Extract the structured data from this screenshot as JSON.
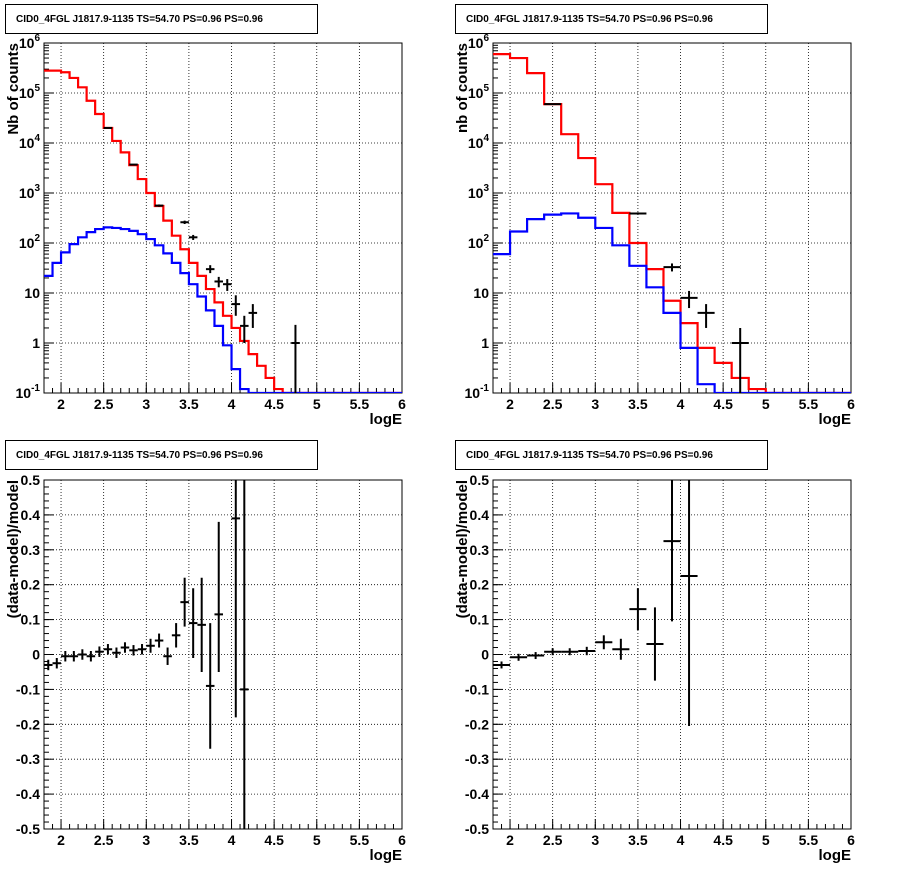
{
  "panels": [
    {
      "title": "CID0_4FGL J1817.9-1135 TS=54.70 PS=0.96 PS=0.96",
      "chart_data": {
        "type": "line",
        "xlabel": "logE",
        "ylabel": "Nb of counts",
        "xlim": [
          1.8,
          6.0
        ],
        "ylim": [
          0.1,
          1000000
        ],
        "yscale": "log",
        "grid": true,
        "xticks": [
          "2",
          "2.5",
          "3",
          "3.5",
          "4",
          "4.5",
          "5",
          "5.5",
          "6"
        ],
        "yticks": [
          "10^-1",
          "1",
          "10",
          "10^2",
          "10^3",
          "10^4",
          "10^5",
          "10^6"
        ],
        "bin_edges": [
          1.8,
          1.9,
          2.0,
          2.1,
          2.2,
          2.3,
          2.4,
          2.5,
          2.6,
          2.7,
          2.8,
          2.9,
          3.0,
          3.1,
          3.2,
          3.3,
          3.4,
          3.5,
          3.6,
          3.7,
          3.8,
          3.9,
          4.0,
          4.1,
          4.2,
          4.3,
          4.4,
          4.5,
          4.6,
          4.7,
          4.8,
          4.9,
          5.0,
          5.1,
          5.2,
          5.3,
          5.4,
          5.5,
          5.6,
          5.7,
          5.8,
          5.9,
          6.0
        ],
        "series": [
          {
            "color": "#ff0000",
            "values": [
              280000,
              280000,
              260000,
              200000,
              130000,
              70000,
              38000,
              20000,
              11000,
              6500,
              3600,
              1900,
              1000,
              550,
              280,
              140,
              75,
              40,
              22,
              12,
              6.5,
              3.5,
              2.0,
              1.1,
              0.6,
              0.35,
              0.2,
              0.12,
              0.1,
              0.1,
              0.1,
              0.1,
              0.1,
              0.1,
              0.1,
              0.1,
              0.1,
              0.1,
              0.1,
              0.1,
              0.1,
              0.1
            ]
          },
          {
            "color": "#0000ff",
            "values": [
              22,
              40,
              65,
              95,
              130,
              165,
              190,
              205,
              200,
              190,
              175,
              150,
              120,
              90,
              62,
              40,
              25,
              15,
              8.5,
              4.5,
              2.2,
              0.9,
              0.3,
              0.12,
              0.1,
              0.1,
              0.1,
              0.1,
              0.1,
              0.1,
              0.1,
              0.1,
              0.1,
              0.1,
              0.1,
              0.1,
              0.1,
              0.1,
              0.1,
              0.1,
              0.1,
              0.1
            ]
          }
        ],
        "points": [
          {
            "x": 2.55,
            "xerr": 0.05,
            "y": 20000,
            "ylo": 19800,
            "yhi": 20200
          },
          {
            "x": 2.85,
            "xerr": 0.05,
            "y": 3700,
            "ylo": 3600,
            "yhi": 3800
          },
          {
            "x": 3.15,
            "xerr": 0.05,
            "y": 560,
            "ylo": 530,
            "yhi": 590
          },
          {
            "x": 3.45,
            "xerr": 0.05,
            "y": 260,
            "ylo": 240,
            "yhi": 280
          },
          {
            "x": 3.55,
            "xerr": 0.05,
            "y": 130,
            "ylo": 115,
            "yhi": 145
          },
          {
            "x": 3.75,
            "xerr": 0.05,
            "y": 30,
            "ylo": 25,
            "yhi": 36
          },
          {
            "x": 3.85,
            "xerr": 0.05,
            "y": 17,
            "ylo": 13,
            "yhi": 21
          },
          {
            "x": 3.95,
            "xerr": 0.05,
            "y": 15,
            "ylo": 11,
            "yhi": 19
          },
          {
            "x": 4.05,
            "xerr": 0.05,
            "y": 6,
            "ylo": 3.5,
            "yhi": 9
          },
          {
            "x": 4.15,
            "xerr": 0.05,
            "y": 2.2,
            "ylo": 1.0,
            "yhi": 3.5
          },
          {
            "x": 4.25,
            "xerr": 0.05,
            "y": 4,
            "ylo": 2,
            "yhi": 6
          },
          {
            "x": 4.75,
            "xerr": 0.05,
            "y": 1,
            "ylo": 0.1,
            "yhi": 2.3
          }
        ]
      }
    },
    {
      "title": "CID0_4FGL J1817.9-1135 TS=54.70 PS=0.96 PS=0.96",
      "chart_data": {
        "type": "line",
        "xlabel": "logE",
        "ylabel": "nb of counts",
        "xlim": [
          1.8,
          6.0
        ],
        "ylim": [
          0.1,
          1000000
        ],
        "yscale": "log",
        "grid": true,
        "xticks": [
          "2",
          "2.5",
          "3",
          "3.5",
          "4",
          "4.5",
          "5",
          "5.5",
          "6"
        ],
        "yticks": [
          "10^-1",
          "1",
          "10",
          "10^2",
          "10^3",
          "10^4",
          "10^5",
          "10^6"
        ],
        "bin_edges": [
          1.8,
          2.0,
          2.2,
          2.4,
          2.6,
          2.8,
          3.0,
          3.2,
          3.4,
          3.6,
          3.8,
          4.0,
          4.2,
          4.4,
          4.6,
          4.8,
          5.0,
          5.2,
          5.4,
          5.6,
          5.8,
          6.0
        ],
        "series": [
          {
            "color": "#ff0000",
            "values": [
              600000,
              500000,
              250000,
              60000,
              15000,
              5000,
              1500,
              400,
              100,
              30,
              7,
              2.5,
              0.8,
              0.4,
              0.2,
              0.12,
              0.1,
              0.1,
              0.1,
              0.1,
              0.1
            ]
          },
          {
            "color": "#0000ff",
            "values": [
              60,
              170,
              300,
              370,
              390,
              320,
              200,
              90,
              35,
              13,
              4,
              0.8,
              0.15,
              0.1,
              0.1,
              0.1,
              0.1,
              0.1,
              0.1,
              0.1,
              0.1
            ]
          }
        ],
        "points": [
          {
            "x": 2.5,
            "xerr": 0.1,
            "y": 60000,
            "ylo": 59000,
            "yhi": 61000
          },
          {
            "x": 3.5,
            "xerr": 0.1,
            "y": 390,
            "ylo": 370,
            "yhi": 410
          },
          {
            "x": 3.9,
            "xerr": 0.1,
            "y": 33,
            "ylo": 27,
            "yhi": 39
          },
          {
            "x": 4.1,
            "xerr": 0.1,
            "y": 8,
            "ylo": 5,
            "yhi": 11
          },
          {
            "x": 4.3,
            "xerr": 0.1,
            "y": 4,
            "ylo": 2,
            "yhi": 6
          },
          {
            "x": 4.7,
            "xerr": 0.1,
            "y": 1,
            "ylo": 0.1,
            "yhi": 2.0
          }
        ]
      }
    },
    {
      "title": "CID0_4FGL J1817.9-1135 TS=54.70 PS=0.96 PS=0.96",
      "chart_data": {
        "type": "scatter",
        "xlabel": "logE",
        "ylabel": "(data-model)/model",
        "xlim": [
          1.8,
          6.0
        ],
        "ylim": [
          -0.5,
          0.5
        ],
        "grid": true,
        "xticks": [
          "2",
          "2.5",
          "3",
          "3.5",
          "4",
          "4.5",
          "5",
          "5.5",
          "6"
        ],
        "yticks": [
          "-0.5",
          "-0.4",
          "-0.3",
          "-0.2",
          "-0.1",
          "0",
          "0.1",
          "0.2",
          "0.3",
          "0.4",
          "0.5"
        ],
        "points": [
          {
            "x": 1.85,
            "xerr": 0.05,
            "y": -0.03,
            "ylo": -0.045,
            "yhi": -0.015
          },
          {
            "x": 1.95,
            "xerr": 0.05,
            "y": -0.025,
            "ylo": -0.04,
            "yhi": -0.01
          },
          {
            "x": 2.05,
            "xerr": 0.05,
            "y": -0.005,
            "ylo": -0.02,
            "yhi": 0.01
          },
          {
            "x": 2.15,
            "xerr": 0.05,
            "y": -0.005,
            "ylo": -0.02,
            "yhi": 0.01
          },
          {
            "x": 2.25,
            "xerr": 0.05,
            "y": 0.0,
            "ylo": -0.015,
            "yhi": 0.015
          },
          {
            "x": 2.35,
            "xerr": 0.05,
            "y": -0.005,
            "ylo": -0.02,
            "yhi": 0.01
          },
          {
            "x": 2.45,
            "xerr": 0.05,
            "y": 0.008,
            "ylo": -0.007,
            "yhi": 0.023
          },
          {
            "x": 2.55,
            "xerr": 0.05,
            "y": 0.015,
            "ylo": 0.0,
            "yhi": 0.03
          },
          {
            "x": 2.65,
            "xerr": 0.05,
            "y": 0.005,
            "ylo": -0.01,
            "yhi": 0.02
          },
          {
            "x": 2.75,
            "xerr": 0.05,
            "y": 0.02,
            "ylo": 0.005,
            "yhi": 0.035
          },
          {
            "x": 2.85,
            "xerr": 0.05,
            "y": 0.012,
            "ylo": -0.003,
            "yhi": 0.027
          },
          {
            "x": 2.95,
            "xerr": 0.05,
            "y": 0.015,
            "ylo": 0.0,
            "yhi": 0.03
          },
          {
            "x": 3.05,
            "xerr": 0.05,
            "y": 0.025,
            "ylo": 0.005,
            "yhi": 0.045
          },
          {
            "x": 3.15,
            "xerr": 0.05,
            "y": 0.04,
            "ylo": 0.02,
            "yhi": 0.06
          },
          {
            "x": 3.25,
            "xerr": 0.05,
            "y": -0.005,
            "ylo": -0.03,
            "yhi": 0.02
          },
          {
            "x": 3.35,
            "xerr": 0.05,
            "y": 0.055,
            "ylo": 0.02,
            "yhi": 0.09
          },
          {
            "x": 3.45,
            "xerr": 0.05,
            "y": 0.15,
            "ylo": 0.08,
            "yhi": 0.22
          },
          {
            "x": 3.55,
            "xerr": 0.05,
            "y": 0.09,
            "ylo": -0.01,
            "yhi": 0.19
          },
          {
            "x": 3.65,
            "xerr": 0.05,
            "y": 0.085,
            "ylo": -0.05,
            "yhi": 0.22
          },
          {
            "x": 3.75,
            "xerr": 0.05,
            "y": -0.09,
            "ylo": -0.27,
            "yhi": 0.09
          },
          {
            "x": 3.85,
            "xerr": 0.05,
            "y": 0.115,
            "ylo": -0.05,
            "yhi": 0.38
          },
          {
            "x": 4.05,
            "xerr": 0.05,
            "y": 0.39,
            "ylo": -0.18,
            "yhi": 0.5
          },
          {
            "x": 4.15,
            "xerr": 0.05,
            "y": -0.1,
            "ylo": -0.5,
            "yhi": 0.5
          }
        ]
      }
    },
    {
      "title": "CID0_4FGL J1817.9-1135 TS=54.70 PS=0.96 PS=0.96",
      "chart_data": {
        "type": "scatter",
        "xlabel": "logE",
        "ylabel": "(data-model)/model",
        "xlim": [
          1.8,
          6.0
        ],
        "ylim": [
          -0.5,
          0.5
        ],
        "grid": true,
        "xticks": [
          "2",
          "2.5",
          "3",
          "3.5",
          "4",
          "4.5",
          "5",
          "5.5",
          "6"
        ],
        "yticks": [
          "-0.5",
          "-0.4",
          "-0.3",
          "-0.2",
          "-0.1",
          "0",
          "0.1",
          "0.2",
          "0.3",
          "0.4",
          "0.5"
        ],
        "points": [
          {
            "x": 1.9,
            "xerr": 0.1,
            "y": -0.03,
            "ylo": -0.04,
            "yhi": -0.02
          },
          {
            "x": 2.1,
            "xerr": 0.1,
            "y": -0.008,
            "ylo": -0.018,
            "yhi": 0.002
          },
          {
            "x": 2.3,
            "xerr": 0.1,
            "y": -0.003,
            "ylo": -0.013,
            "yhi": 0.007
          },
          {
            "x": 2.5,
            "xerr": 0.1,
            "y": 0.008,
            "ylo": -0.002,
            "yhi": 0.018
          },
          {
            "x": 2.7,
            "xerr": 0.1,
            "y": 0.008,
            "ylo": -0.002,
            "yhi": 0.018
          },
          {
            "x": 2.9,
            "xerr": 0.1,
            "y": 0.01,
            "ylo": -0.002,
            "yhi": 0.022
          },
          {
            "x": 3.1,
            "xerr": 0.1,
            "y": 0.035,
            "ylo": 0.015,
            "yhi": 0.055
          },
          {
            "x": 3.3,
            "xerr": 0.1,
            "y": 0.015,
            "ylo": -0.015,
            "yhi": 0.045
          },
          {
            "x": 3.5,
            "xerr": 0.1,
            "y": 0.13,
            "ylo": 0.07,
            "yhi": 0.19
          },
          {
            "x": 3.7,
            "xerr": 0.1,
            "y": 0.03,
            "ylo": -0.075,
            "yhi": 0.135
          },
          {
            "x": 3.9,
            "xerr": 0.1,
            "y": 0.325,
            "ylo": 0.095,
            "yhi": 0.5
          },
          {
            "x": 4.1,
            "xerr": 0.1,
            "y": 0.225,
            "ylo": -0.205,
            "yhi": 0.5
          }
        ]
      }
    }
  ]
}
